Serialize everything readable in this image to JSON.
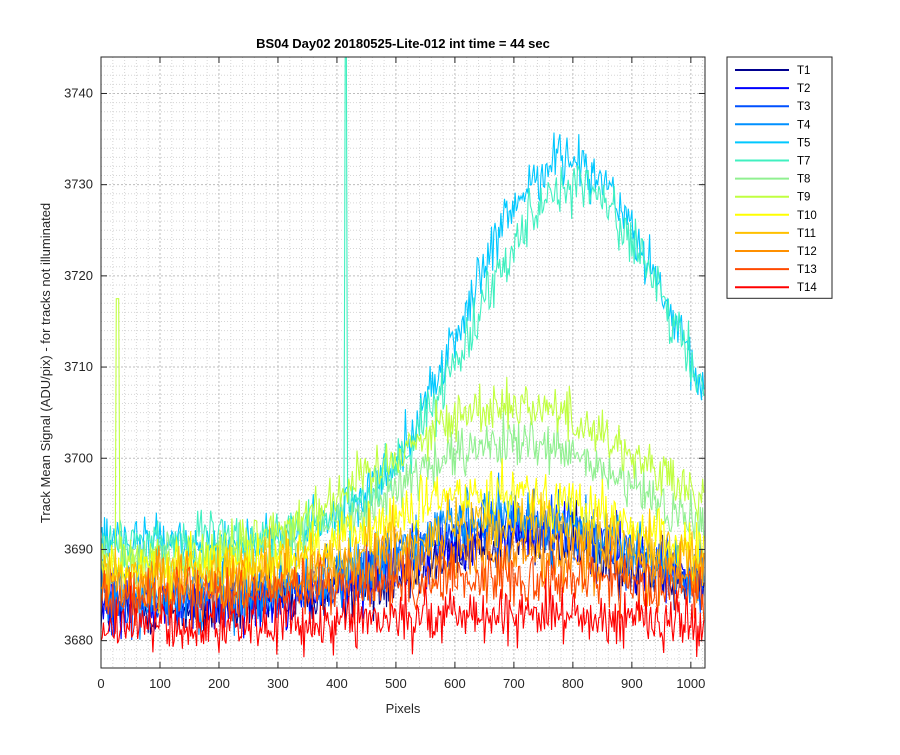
{
  "chart_data": {
    "type": "line",
    "title": "BS04 Day02 20180525-Lite-012 int time = 44 sec",
    "xlabel": "Pixels",
    "ylabel": "Track Mean Signal (ADU/pix) - for tracks not illuminated",
    "xlim": [
      0,
      1024
    ],
    "ylim": [
      3677,
      3744
    ],
    "xticks": [
      0,
      100,
      200,
      300,
      400,
      500,
      600,
      700,
      800,
      900,
      1000
    ],
    "yticks": [
      3680,
      3690,
      3700,
      3710,
      3720,
      3730,
      3740
    ],
    "grid": "on (major and minor, dotted)",
    "legend_position": "outside-right-top",
    "series": [
      {
        "name": "T1",
        "color": "#00008f",
        "baseline": 3683.5,
        "peak": 3691.0,
        "peak_x": 720,
        "peak_width": 190,
        "noise": 2.4
      },
      {
        "name": "T2",
        "color": "#0000ff",
        "baseline": 3684.0,
        "peak": 3692.0,
        "peak_x": 720,
        "peak_width": 190,
        "noise": 2.4
      },
      {
        "name": "T3",
        "color": "#0050ff",
        "baseline": 3684.5,
        "peak": 3693.0,
        "peak_x": 700,
        "peak_width": 190,
        "noise": 2.5
      },
      {
        "name": "T4",
        "color": "#0090ff",
        "baseline": 3685.0,
        "peak": 3693.5,
        "peak_x": 700,
        "peak_width": 190,
        "noise": 2.5
      },
      {
        "name": "T5",
        "color": "#00c8ff",
        "baseline": 3690.5,
        "peak": 3733.0,
        "peak_x": 790,
        "peak_width": 170,
        "noise": 2.0
      },
      {
        "name": "T7",
        "color": "#40f0c0",
        "baseline": 3691.0,
        "peak": 3730.0,
        "peak_x": 800,
        "peak_width": 170,
        "noise": 2.0,
        "spike_x": 415,
        "spike_y": 3744
      },
      {
        "name": "T8",
        "color": "#90f090",
        "baseline": 3688.5,
        "peak": 3701.5,
        "peak_x": 700,
        "peak_width": 210,
        "noise": 2.0
      },
      {
        "name": "T9",
        "color": "#c0ff40",
        "baseline": 3688.5,
        "peak": 3706.0,
        "peak_x": 700,
        "peak_width": 230,
        "noise": 2.0,
        "spike_x": 28,
        "spike_y": 3717.5
      },
      {
        "name": "T10",
        "color": "#ffff00",
        "baseline": 3687.5,
        "peak": 3696.5,
        "peak_x": 680,
        "peak_width": 200,
        "noise": 2.2
      },
      {
        "name": "T11",
        "color": "#ffc000",
        "baseline": 3687.0,
        "peak": 3692.5,
        "peak_x": 680,
        "peak_width": 220,
        "noise": 2.3
      },
      {
        "name": "T12",
        "color": "#ff9000",
        "baseline": 3686.0,
        "peak": 3689.5,
        "peak_x": 680,
        "peak_width": 220,
        "noise": 2.3
      },
      {
        "name": "T13",
        "color": "#ff4a00",
        "baseline": 3684.5,
        "peak": 3687.0,
        "peak_x": 680,
        "peak_width": 230,
        "noise": 2.3
      },
      {
        "name": "T14",
        "color": "#ff0000",
        "baseline": 3681.5,
        "peak": 3683.0,
        "peak_x": 680,
        "peak_width": 240,
        "noise": 2.2
      }
    ]
  }
}
